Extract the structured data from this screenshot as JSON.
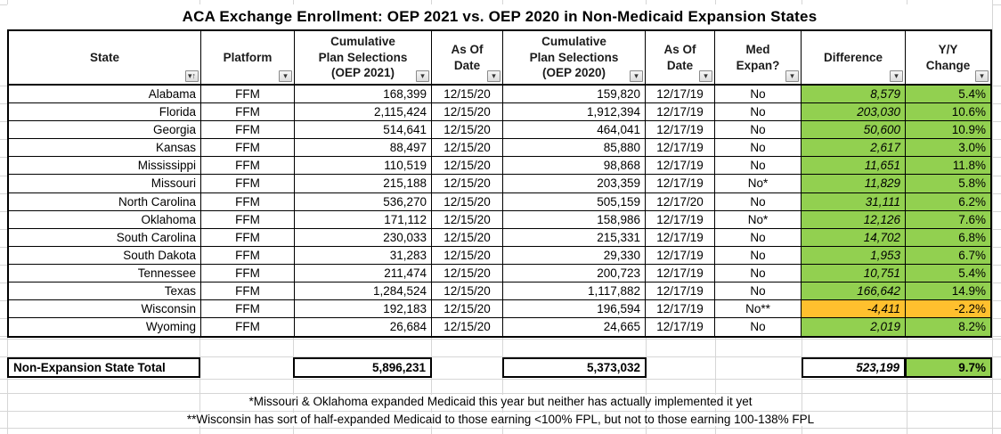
{
  "title": "ACA Exchange Enrollment: OEP 2021 vs. OEP 2020 in Non-Medicaid Expansion States",
  "table": {
    "columns": [
      {
        "key": "state",
        "label": "State",
        "sorted": true
      },
      {
        "key": "platform",
        "label": "Platform",
        "sorted": false
      },
      {
        "key": "cps2021",
        "label": "Cumulative\nPlan Selections\n(OEP 2021)",
        "sorted": false
      },
      {
        "key": "asof2021",
        "label": "As Of\nDate",
        "sorted": false
      },
      {
        "key": "cps2020",
        "label": "Cumulative\nPlan Selections\n(OEP 2020)",
        "sorted": false
      },
      {
        "key": "asof2020",
        "label": "As Of\nDate",
        "sorted": false
      },
      {
        "key": "medexpan",
        "label": "Med\nExpan?",
        "sorted": false
      },
      {
        "key": "difference",
        "label": "Difference",
        "sorted": false
      },
      {
        "key": "yychange",
        "label": "Y/Y\nChange",
        "sorted": false
      }
    ],
    "rows": [
      {
        "state": "Alabama",
        "platform": "FFM",
        "cps2021": "168,399",
        "asof2021": "12/15/20",
        "cps2020": "159,820",
        "asof2020": "12/17/19",
        "medexpan": "No",
        "difference": "8,579",
        "yychange": "5.4%",
        "trend": "positive"
      },
      {
        "state": "Florida",
        "platform": "FFM",
        "cps2021": "2,115,424",
        "asof2021": "12/15/20",
        "cps2020": "1,912,394",
        "asof2020": "12/17/19",
        "medexpan": "No",
        "difference": "203,030",
        "yychange": "10.6%",
        "trend": "positive"
      },
      {
        "state": "Georgia",
        "platform": "FFM",
        "cps2021": "514,641",
        "asof2021": "12/15/20",
        "cps2020": "464,041",
        "asof2020": "12/17/19",
        "medexpan": "No",
        "difference": "50,600",
        "yychange": "10.9%",
        "trend": "positive"
      },
      {
        "state": "Kansas",
        "platform": "FFM",
        "cps2021": "88,497",
        "asof2021": "12/15/20",
        "cps2020": "85,880",
        "asof2020": "12/17/19",
        "medexpan": "No",
        "difference": "2,617",
        "yychange": "3.0%",
        "trend": "positive"
      },
      {
        "state": "Mississippi",
        "platform": "FFM",
        "cps2021": "110,519",
        "asof2021": "12/15/20",
        "cps2020": "98,868",
        "asof2020": "12/17/19",
        "medexpan": "No",
        "difference": "11,651",
        "yychange": "11.8%",
        "trend": "positive"
      },
      {
        "state": "Missouri",
        "platform": "FFM",
        "cps2021": "215,188",
        "asof2021": "12/15/20",
        "cps2020": "203,359",
        "asof2020": "12/17/19",
        "medexpan": "No*",
        "difference": "11,829",
        "yychange": "5.8%",
        "trend": "positive"
      },
      {
        "state": "North Carolina",
        "platform": "FFM",
        "cps2021": "536,270",
        "asof2021": "12/15/20",
        "cps2020": "505,159",
        "asof2020": "12/17/20",
        "medexpan": "No",
        "difference": "31,111",
        "yychange": "6.2%",
        "trend": "positive"
      },
      {
        "state": "Oklahoma",
        "platform": "FFM",
        "cps2021": "171,112",
        "asof2021": "12/15/20",
        "cps2020": "158,986",
        "asof2020": "12/17/19",
        "medexpan": "No*",
        "difference": "12,126",
        "yychange": "7.6%",
        "trend": "positive"
      },
      {
        "state": "South Carolina",
        "platform": "FFM",
        "cps2021": "230,033",
        "asof2021": "12/15/20",
        "cps2020": "215,331",
        "asof2020": "12/17/19",
        "medexpan": "No",
        "difference": "14,702",
        "yychange": "6.8%",
        "trend": "positive"
      },
      {
        "state": "South Dakota",
        "platform": "FFM",
        "cps2021": "31,283",
        "asof2021": "12/15/20",
        "cps2020": "29,330",
        "asof2020": "12/17/19",
        "medexpan": "No",
        "difference": "1,953",
        "yychange": "6.7%",
        "trend": "positive"
      },
      {
        "state": "Tennessee",
        "platform": "FFM",
        "cps2021": "211,474",
        "asof2021": "12/15/20",
        "cps2020": "200,723",
        "asof2020": "12/17/19",
        "medexpan": "No",
        "difference": "10,751",
        "yychange": "5.4%",
        "trend": "positive"
      },
      {
        "state": "Texas",
        "platform": "FFM",
        "cps2021": "1,284,524",
        "asof2021": "12/15/20",
        "cps2020": "1,117,882",
        "asof2020": "12/17/19",
        "medexpan": "No",
        "difference": "166,642",
        "yychange": "14.9%",
        "trend": "positive"
      },
      {
        "state": "Wisconsin",
        "platform": "FFM",
        "cps2021": "192,183",
        "asof2021": "12/15/20",
        "cps2020": "196,594",
        "asof2020": "12/17/19",
        "medexpan": "No**",
        "difference": "-4,411",
        "yychange": "-2.2%",
        "trend": "negative"
      },
      {
        "state": "Wyoming",
        "platform": "FFM",
        "cps2021": "26,684",
        "asof2021": "12/15/20",
        "cps2020": "24,665",
        "asof2020": "12/17/19",
        "medexpan": "No",
        "difference": "2,019",
        "yychange": "8.2%",
        "trend": "positive"
      }
    ],
    "total": {
      "label": "Non-Expansion State Total",
      "cps2021": "5,896,231",
      "cps2020": "5,373,032",
      "difference": "523,199",
      "yychange": "9.7%"
    }
  },
  "footnotes": [
    "*Missouri & Oklahoma expanded Medicaid this year but neither has actually implemented it yet",
    "**Wisconsin has sort of half-expanded Medicaid to those earning <100% FPL, but not to those earning 100-138% FPL"
  ],
  "colors": {
    "positive": "#92D050",
    "negative": "#FFC02E"
  },
  "icons": {
    "filter_dropdown": "▾",
    "sort_ascending": "↑"
  }
}
